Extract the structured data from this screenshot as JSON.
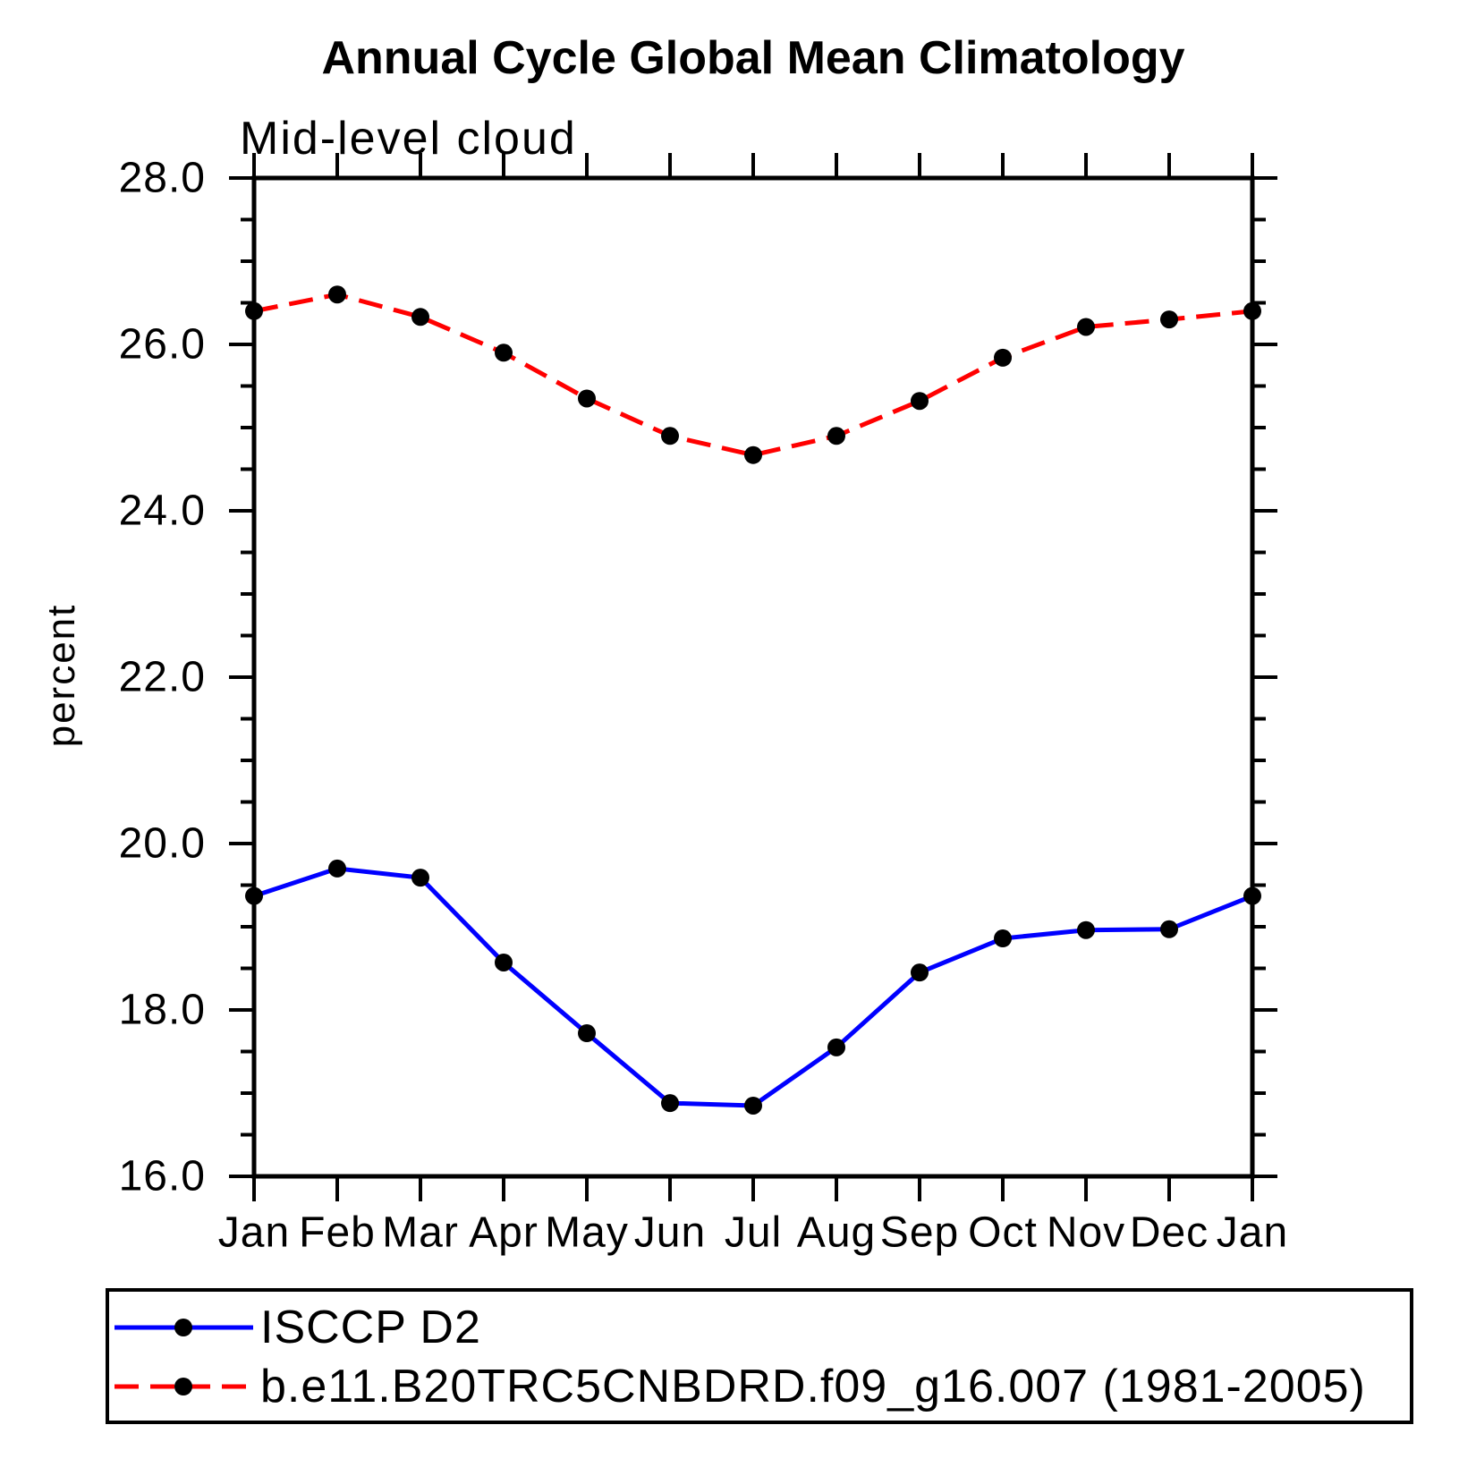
{
  "header": {
    "title": "Annual Cycle Global Mean Climatology",
    "subtitle": "Mid-level cloud"
  },
  "chart_data": {
    "type": "line",
    "title": "Annual Cycle Global Mean Climatology",
    "subtitle": "Mid-level cloud",
    "xlabel": "",
    "ylabel": "percent",
    "categories": [
      "Jan",
      "Feb",
      "Mar",
      "Apr",
      "May",
      "Jun",
      "Jul",
      "Aug",
      "Sep",
      "Oct",
      "Nov",
      "Dec",
      "Jan"
    ],
    "ylim": [
      16.0,
      28.0
    ],
    "y_major_ticks": [
      16.0,
      18.0,
      20.0,
      22.0,
      24.0,
      26.0,
      28.0
    ],
    "y_tick_labels": [
      "16.0",
      "18.0",
      "20.0",
      "22.0",
      "24.0",
      "26.0",
      "28.0"
    ],
    "y_minor_step": 0.5,
    "grid": false,
    "legend_position": "bottom",
    "marker_color": "#000000",
    "axis_color": "#000000",
    "series": [
      {
        "name": "ISCCP D2",
        "color": "#0000ff",
        "style": "solid",
        "marker": "circle",
        "values": [
          19.37,
          19.7,
          19.59,
          18.57,
          17.72,
          16.88,
          16.85,
          17.55,
          18.45,
          18.86,
          18.96,
          18.97,
          19.37
        ]
      },
      {
        "name": "b.e11.B20TRC5CNBDRD.f09_g16.007 (1981-2005)",
        "color": "#ff0000",
        "style": "dashed",
        "marker": "circle",
        "values": [
          26.4,
          26.6,
          26.33,
          25.9,
          25.35,
          24.9,
          24.67,
          24.9,
          25.32,
          25.84,
          26.21,
          26.3,
          26.4
        ]
      }
    ]
  }
}
